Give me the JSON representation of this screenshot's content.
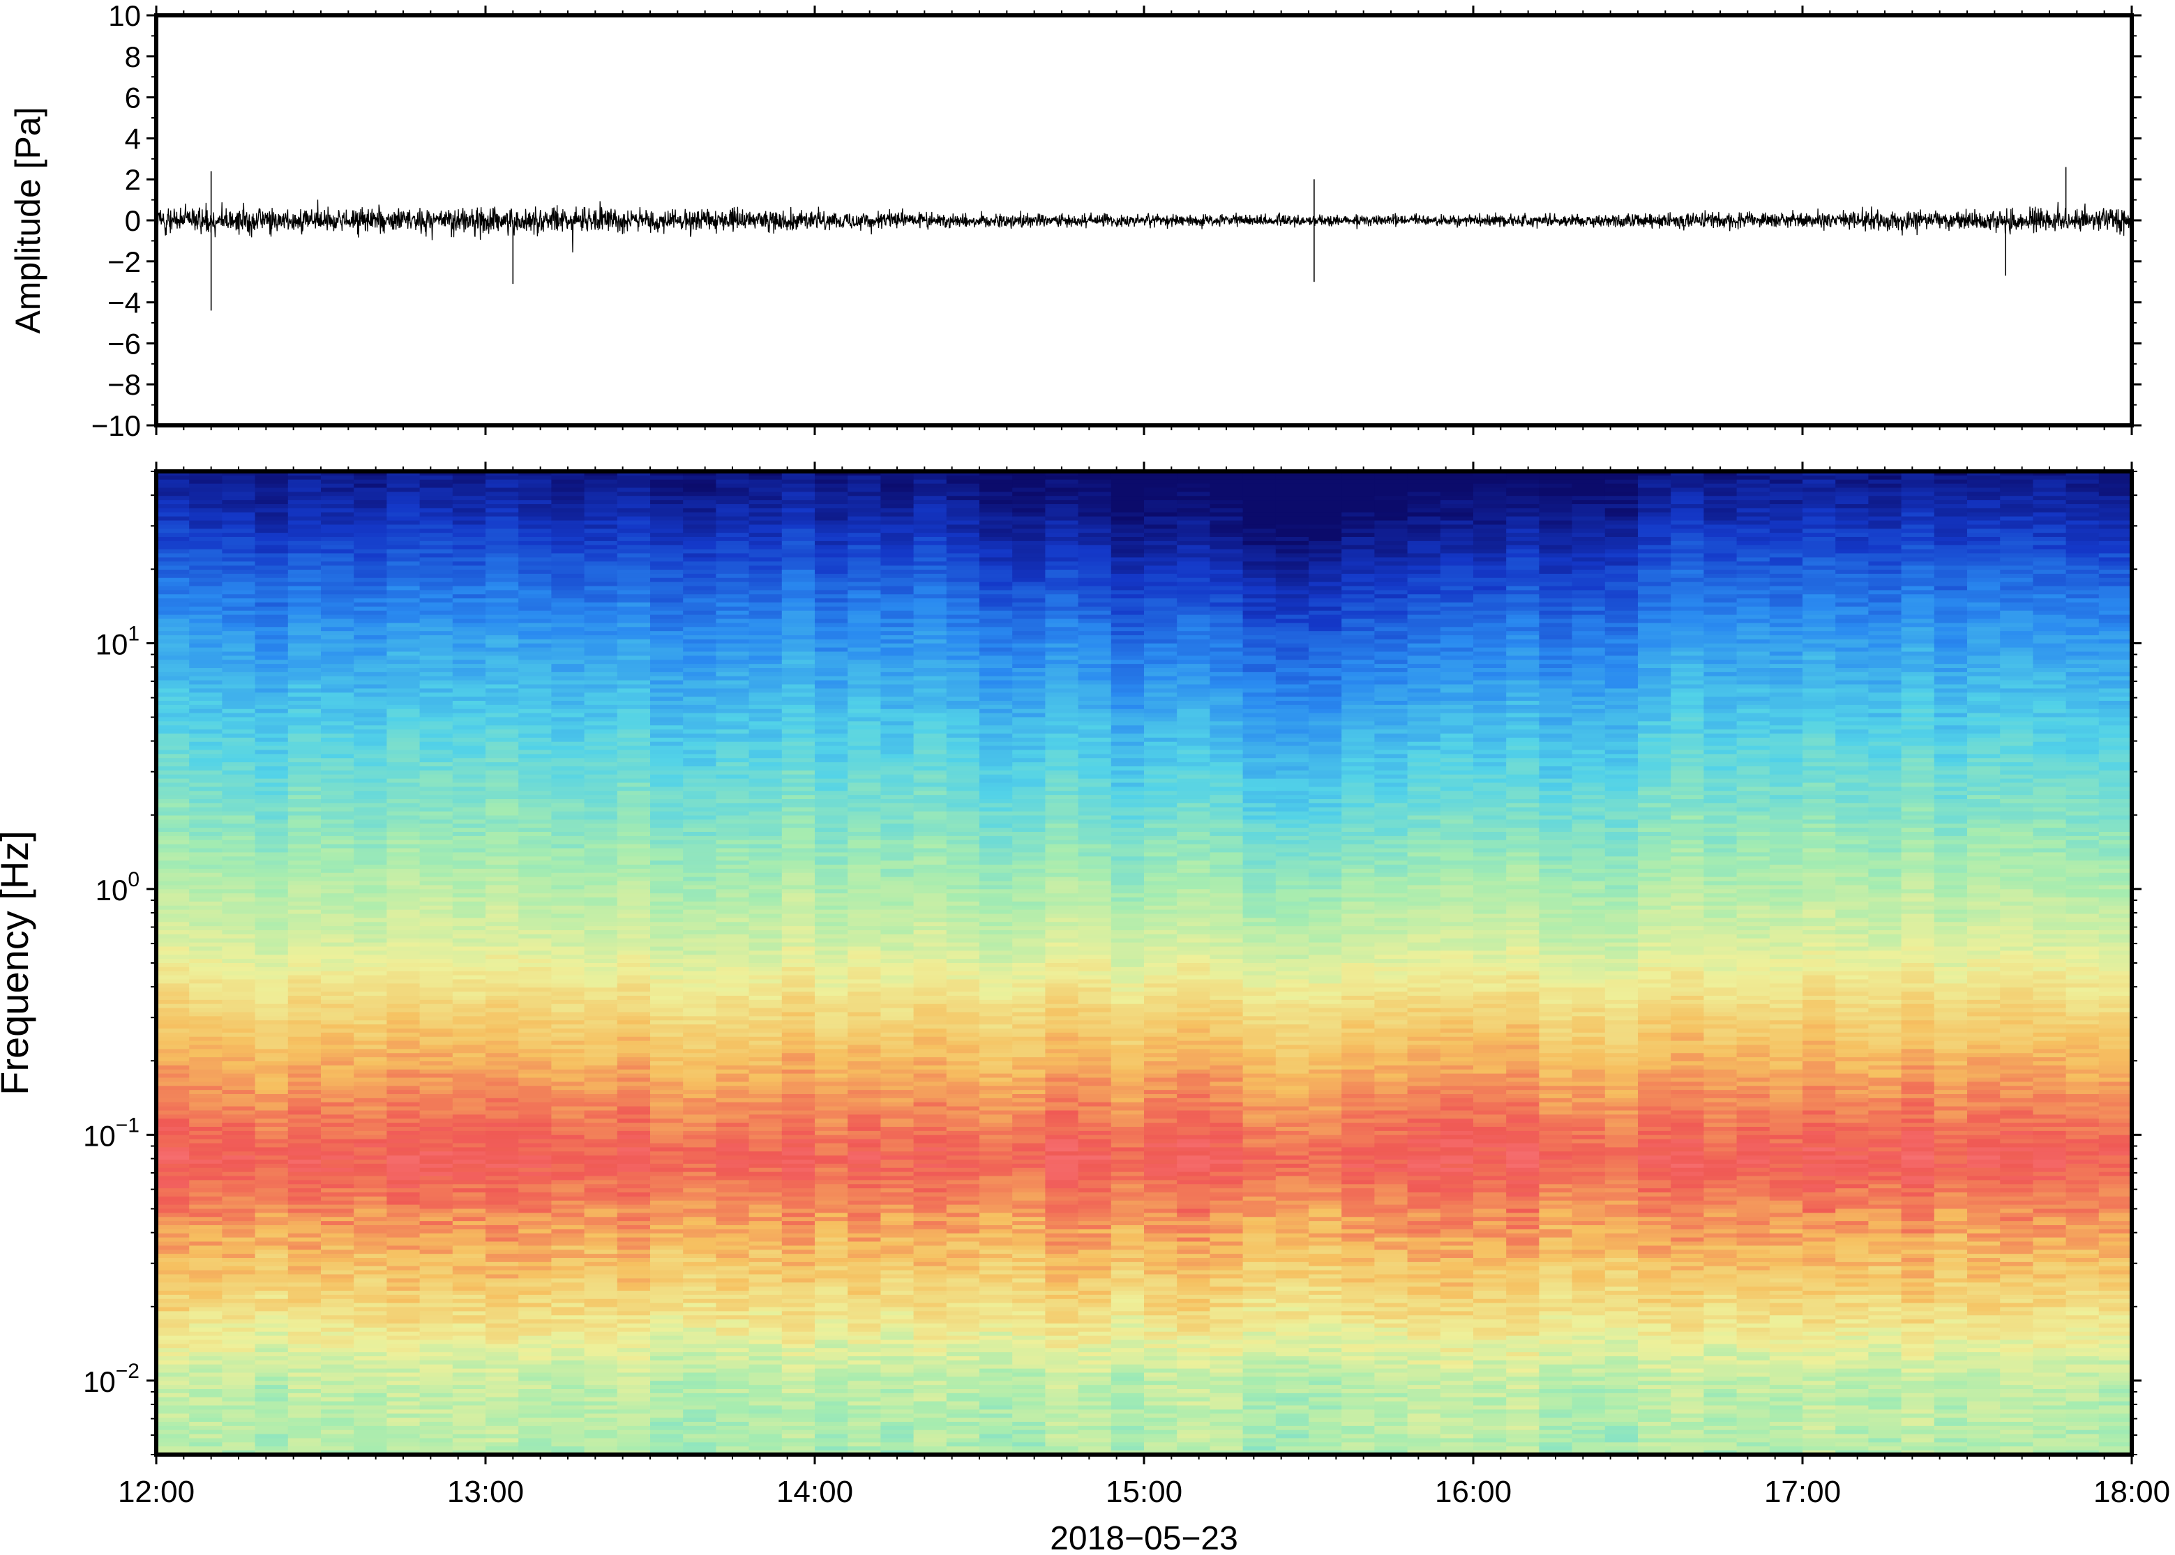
{
  "chart_data": [
    {
      "type": "line",
      "title": "",
      "ylabel": "Amplitude [Pa]",
      "xlabel": "",
      "ylim": [
        -10,
        10
      ],
      "xlim": [
        "12:00",
        "18:00"
      ],
      "y_ticks": [
        "10",
        "8",
        "6",
        "4",
        "2",
        "0",
        "−2",
        "−4",
        "−6",
        "−8",
        "−10"
      ],
      "grid": false,
      "series": [
        {
          "color": "#000000",
          "baseline": 0,
          "envelope_by_hour": {
            "x": [
              12.0,
              12.5,
              13.0,
              13.5,
              14.0,
              14.5,
              15.0,
              15.5,
              16.0,
              16.5,
              17.0,
              17.5,
              18.0
            ],
            "half_width": [
              1.3,
              1.2,
              1.3,
              1.1,
              0.9,
              0.7,
              0.6,
              0.5,
              0.55,
              0.7,
              0.8,
              1.0,
              1.2
            ]
          },
          "peaks": [
            {
              "x": "12:10",
              "y": -4.4
            },
            {
              "x": "12:10",
              "y": 2.4
            },
            {
              "x": "13:05",
              "y": -3.1
            },
            {
              "x": "15:31",
              "y": -3.0
            },
            {
              "x": "15:31",
              "y": 2.0
            },
            {
              "x": "17:37",
              "y": -2.7
            },
            {
              "x": "17:48",
              "y": 2.6
            }
          ]
        }
      ]
    },
    {
      "type": "heatmap",
      "title": "",
      "ylabel": "Frequency [Hz]",
      "xlabel": "2018−05−23",
      "yscale": "log",
      "ylim": [
        0.005,
        50
      ],
      "xlim": [
        "12:00",
        "18:00"
      ],
      "x_ticks": [
        "12:00",
        "13:00",
        "14:00",
        "15:00",
        "16:00",
        "17:00",
        "18:00"
      ],
      "y_ticks": [
        {
          "value": 0.01,
          "base": "10",
          "exp": "−2"
        },
        {
          "value": 0.1,
          "base": "10",
          "exp": "−1"
        },
        {
          "value": 1,
          "base": "10",
          "exp": "0"
        },
        {
          "value": 10,
          "base": "10",
          "exp": "1"
        }
      ],
      "colormap": [
        "#0b0b6b",
        "#1438c8",
        "#2a8af0",
        "#52d2e8",
        "#a6ecb0",
        "#eef09a",
        "#f6c060",
        "#f05a55",
        "#ff8c96"
      ],
      "time_columns_per_hour": 10,
      "power_profile_by_frequency": {
        "frequency_hz": [
          0.005,
          0.01,
          0.02,
          0.04,
          0.08,
          0.15,
          0.3,
          0.6,
          1.5,
          4,
          10,
          20,
          35,
          50
        ],
        "relative_level": [
          0.52,
          0.54,
          0.68,
          0.78,
          0.88,
          0.8,
          0.7,
          0.58,
          0.48,
          0.38,
          0.28,
          0.18,
          0.08,
          0.03
        ]
      },
      "quieter_interval": [
        "14:20",
        "16:40"
      ]
    }
  ]
}
